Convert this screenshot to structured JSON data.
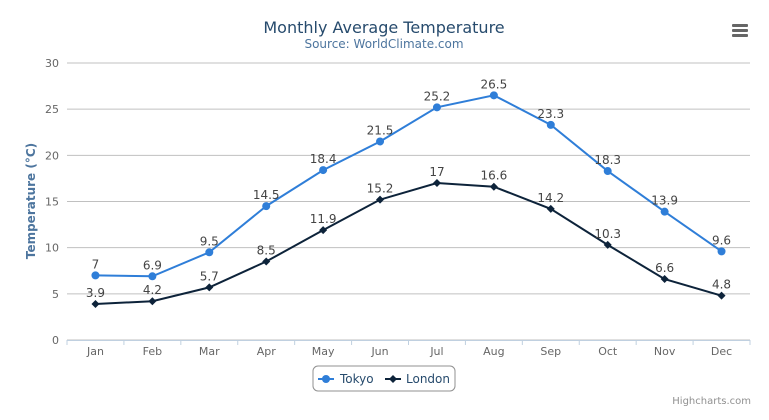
{
  "chart_data": {
    "type": "line",
    "title": "Monthly Average Temperature",
    "subtitle": "Source: WorldClimate.com",
    "ylabel": "Temperature (°C)",
    "xlabel": "",
    "ylim": [
      0,
      30
    ],
    "yticks": [
      0,
      5,
      10,
      15,
      20,
      25,
      30
    ],
    "grid": true,
    "legend_placement": "bottom-center",
    "categories": [
      "Jan",
      "Feb",
      "Mar",
      "Apr",
      "May",
      "Jun",
      "Jul",
      "Aug",
      "Sep",
      "Oct",
      "Nov",
      "Dec"
    ],
    "series": [
      {
        "name": "Tokyo",
        "color": "#2f7ed8",
        "marker": "circle",
        "values": [
          7.0,
          6.9,
          9.5,
          14.5,
          18.4,
          21.5,
          25.2,
          26.5,
          23.3,
          18.3,
          13.9,
          9.6
        ]
      },
      {
        "name": "London",
        "color": "#0d233a",
        "marker": "diamond",
        "values": [
          3.9,
          4.2,
          5.7,
          8.5,
          11.9,
          15.2,
          17.0,
          16.6,
          14.2,
          10.3,
          6.6,
          4.8
        ]
      }
    ]
  },
  "credits": "Highcharts.com",
  "menu_icon": "hamburger-menu-icon"
}
